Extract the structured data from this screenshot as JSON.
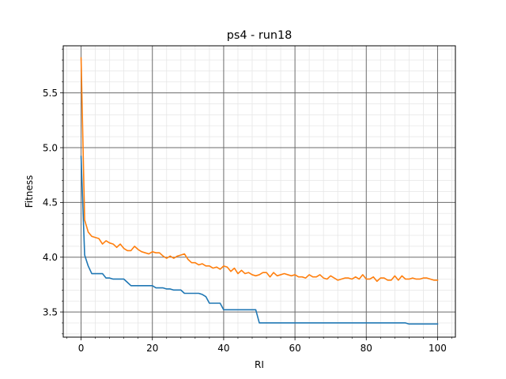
{
  "chart_data": {
    "type": "line",
    "title": "ps4 - run18",
    "xlabel": "RI",
    "ylabel": "Fitness",
    "xlim": [
      -5,
      105
    ],
    "ylim": [
      3.27,
      5.93
    ],
    "x_ticks": [
      0,
      20,
      40,
      60,
      80,
      100
    ],
    "x_tick_labels": [
      "0",
      "20",
      "40",
      "60",
      "80",
      "100"
    ],
    "y_ticks": [
      3.5,
      4.0,
      4.5,
      5.0,
      5.5
    ],
    "y_tick_labels": [
      "3.5",
      "4.0",
      "4.5",
      "5.0",
      "5.5"
    ],
    "grid": "major and minor",
    "series": [
      {
        "color": "#1f77b4",
        "x": [
          0,
          1,
          2,
          3,
          4,
          5,
          6,
          7,
          8,
          9,
          10,
          11,
          12,
          13,
          14,
          15,
          16,
          17,
          18,
          19,
          20,
          21,
          22,
          23,
          24,
          25,
          26,
          27,
          28,
          29,
          30,
          31,
          32,
          33,
          34,
          35,
          36,
          37,
          38,
          39,
          40,
          41,
          42,
          43,
          44,
          45,
          46,
          47,
          48,
          49,
          50,
          51,
          52,
          53,
          54,
          55,
          56,
          57,
          58,
          59,
          60,
          61,
          62,
          63,
          64,
          65,
          66,
          67,
          68,
          69,
          70,
          71,
          72,
          73,
          74,
          75,
          76,
          77,
          78,
          79,
          80,
          81,
          82,
          83,
          84,
          85,
          86,
          87,
          88,
          89,
          90,
          91,
          92,
          93,
          94,
          95,
          96,
          97,
          98,
          99,
          100
        ],
        "values": [
          4.92,
          4.02,
          3.92,
          3.85,
          3.85,
          3.85,
          3.85,
          3.81,
          3.81,
          3.8,
          3.8,
          3.8,
          3.8,
          3.77,
          3.74,
          3.74,
          3.74,
          3.74,
          3.74,
          3.74,
          3.74,
          3.72,
          3.72,
          3.72,
          3.71,
          3.71,
          3.7,
          3.7,
          3.7,
          3.67,
          3.67,
          3.67,
          3.67,
          3.67,
          3.66,
          3.64,
          3.58,
          3.58,
          3.58,
          3.58,
          3.52,
          3.52,
          3.52,
          3.52,
          3.52,
          3.52,
          3.52,
          3.52,
          3.52,
          3.52,
          3.4,
          3.4,
          3.4,
          3.4,
          3.4,
          3.4,
          3.4,
          3.4,
          3.4,
          3.4,
          3.4,
          3.4,
          3.4,
          3.4,
          3.4,
          3.4,
          3.4,
          3.4,
          3.4,
          3.4,
          3.4,
          3.4,
          3.4,
          3.4,
          3.4,
          3.4,
          3.4,
          3.4,
          3.4,
          3.4,
          3.4,
          3.4,
          3.4,
          3.4,
          3.4,
          3.4,
          3.4,
          3.4,
          3.4,
          3.4,
          3.4,
          3.4,
          3.39,
          3.39,
          3.39,
          3.39,
          3.39,
          3.39,
          3.39,
          3.39,
          3.39
        ]
      },
      {
        "color": "#ff7f0e",
        "x": [
          0,
          1,
          2,
          3,
          4,
          5,
          6,
          7,
          8,
          9,
          10,
          11,
          12,
          13,
          14,
          15,
          16,
          17,
          18,
          19,
          20,
          21,
          22,
          23,
          24,
          25,
          26,
          27,
          28,
          29,
          30,
          31,
          32,
          33,
          34,
          35,
          36,
          37,
          38,
          39,
          40,
          41,
          42,
          43,
          44,
          45,
          46,
          47,
          48,
          49,
          50,
          51,
          52,
          53,
          54,
          55,
          56,
          57,
          58,
          59,
          60,
          61,
          62,
          63,
          64,
          65,
          66,
          67,
          68,
          69,
          70,
          71,
          72,
          73,
          74,
          75,
          76,
          77,
          78,
          79,
          80,
          81,
          82,
          83,
          84,
          85,
          86,
          87,
          88,
          89,
          90,
          91,
          92,
          93,
          94,
          95,
          96,
          97,
          98,
          99,
          100
        ],
        "values": [
          5.82,
          4.34,
          4.23,
          4.19,
          4.18,
          4.17,
          4.12,
          4.15,
          4.13,
          4.12,
          4.09,
          4.12,
          4.08,
          4.06,
          4.06,
          4.1,
          4.07,
          4.05,
          4.04,
          4.03,
          4.05,
          4.04,
          4.04,
          4.01,
          3.99,
          4.01,
          3.99,
          4.01,
          4.02,
          4.03,
          3.98,
          3.95,
          3.95,
          3.93,
          3.94,
          3.92,
          3.92,
          3.9,
          3.91,
          3.89,
          3.92,
          3.91,
          3.87,
          3.9,
          3.85,
          3.88,
          3.85,
          3.86,
          3.84,
          3.83,
          3.84,
          3.86,
          3.86,
          3.82,
          3.86,
          3.83,
          3.84,
          3.85,
          3.84,
          3.83,
          3.84,
          3.82,
          3.82,
          3.81,
          3.84,
          3.82,
          3.82,
          3.84,
          3.81,
          3.8,
          3.83,
          3.81,
          3.79,
          3.8,
          3.81,
          3.81,
          3.8,
          3.82,
          3.8,
          3.84,
          3.8,
          3.8,
          3.82,
          3.78,
          3.81,
          3.81,
          3.79,
          3.79,
          3.83,
          3.79,
          3.83,
          3.8,
          3.8,
          3.81,
          3.8,
          3.8,
          3.81,
          3.81,
          3.8,
          3.79,
          3.79
        ]
      }
    ]
  }
}
